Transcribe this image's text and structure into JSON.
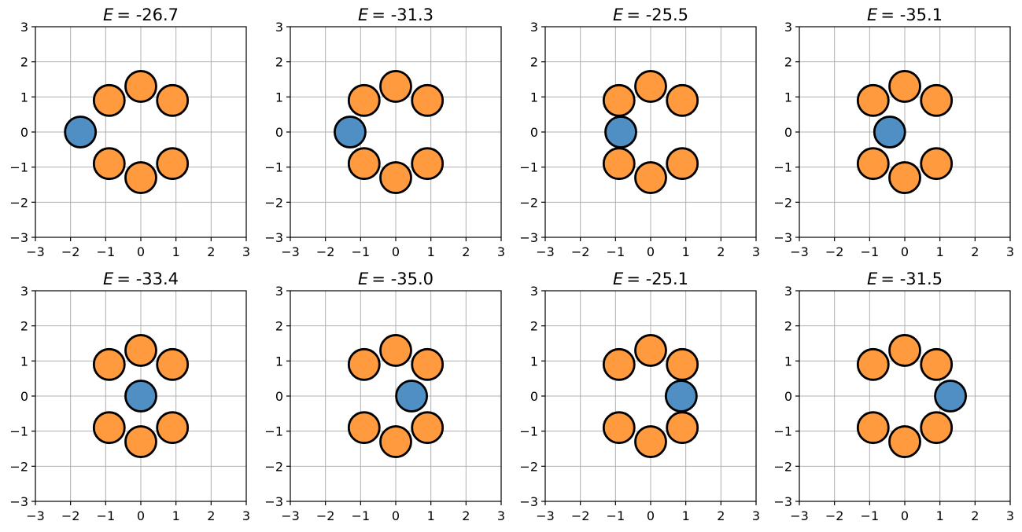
{
  "chart_data": {
    "type": "scatter",
    "layout": "2 rows x 4 columns of panels",
    "xlim": [
      -3,
      3
    ],
    "ylim": [
      -3,
      3
    ],
    "x_ticks": [
      -3,
      -2,
      -1,
      0,
      1,
      2,
      3
    ],
    "y_ticks": [
      -3,
      -2,
      -1,
      0,
      1,
      2,
      3
    ],
    "grid": true,
    "colors": {
      "ring": "#ff9a3f",
      "probe": "#4f8fc3",
      "edge": "#000000",
      "grid": "#b0b0b0"
    },
    "ring_particles": [
      [
        0,
        1.3
      ],
      [
        -0.9,
        0.9
      ],
      [
        0.9,
        0.9
      ],
      [
        -0.9,
        -0.9
      ],
      [
        0.9,
        -0.9
      ],
      [
        0,
        -1.3
      ]
    ],
    "panels": [
      {
        "title_prefix": "E",
        "title_value": "= -26.7",
        "probe": [
          -1.72,
          0
        ]
      },
      {
        "title_prefix": "E",
        "title_value": "= -31.3",
        "probe": [
          -1.3,
          0
        ]
      },
      {
        "title_prefix": "E",
        "title_value": "= -25.5",
        "probe": [
          -0.85,
          0
        ]
      },
      {
        "title_prefix": "E",
        "title_value": "= -35.1",
        "probe": [
          -0.43,
          0
        ]
      },
      {
        "title_prefix": "E",
        "title_value": "= -33.4",
        "probe": [
          0,
          0
        ]
      },
      {
        "title_prefix": "E",
        "title_value": "= -35.0",
        "probe": [
          0.45,
          0
        ]
      },
      {
        "title_prefix": "E",
        "title_value": "= -25.1",
        "probe": [
          0.87,
          0
        ]
      },
      {
        "title_prefix": "E",
        "title_value": "= -31.5",
        "probe": [
          1.3,
          0
        ]
      }
    ]
  }
}
